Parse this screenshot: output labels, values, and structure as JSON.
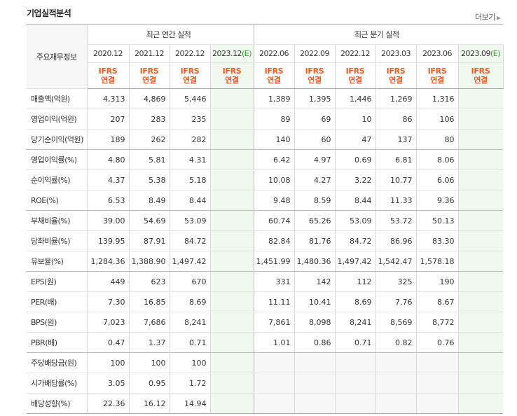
{
  "title": "기업실적분석",
  "more": "더보기",
  "corner": "주요재무정보",
  "groups": {
    "annual": "최근 연간 실적",
    "quarter": "최근 분기 실적"
  },
  "annual_periods": [
    "2020.12",
    "2021.12",
    "2022.12",
    "2023.12"
  ],
  "quarter_periods": [
    "2022.06",
    "2022.09",
    "2022.12",
    "2023.03",
    "2023.06",
    "2023.09"
  ],
  "estimate_mark": "(E)",
  "ifrs": "IFRS",
  "consolidated": "연결",
  "rows": [
    {
      "label": "매출액(억원)",
      "annual": [
        "4,313",
        "4,869",
        "5,446",
        ""
      ],
      "quarter": [
        "1,389",
        "1,395",
        "1,446",
        "1,269",
        "1,316",
        ""
      ]
    },
    {
      "label": "영업이익(억원)",
      "annual": [
        "207",
        "283",
        "235",
        ""
      ],
      "quarter": [
        "89",
        "69",
        "10",
        "86",
        "106",
        ""
      ]
    },
    {
      "label": "당기순이익(억원)",
      "annual": [
        "189",
        "262",
        "282",
        ""
      ],
      "quarter": [
        "140",
        "60",
        "47",
        "137",
        "80",
        ""
      ]
    },
    {
      "label": "영업이익률(%)",
      "annual": [
        "4.80",
        "5.81",
        "4.31",
        ""
      ],
      "quarter": [
        "6.42",
        "4.97",
        "0.69",
        "6.81",
        "8.06",
        ""
      ]
    },
    {
      "label": "순이익률(%)",
      "annual": [
        "4.37",
        "5.38",
        "5.18",
        ""
      ],
      "quarter": [
        "10.08",
        "4.27",
        "3.22",
        "10.77",
        "6.06",
        ""
      ]
    },
    {
      "label": "ROE(%)",
      "annual": [
        "6.53",
        "8.49",
        "8.44",
        ""
      ],
      "quarter": [
        "9.48",
        "8.59",
        "8.44",
        "11.33",
        "9.36",
        ""
      ]
    },
    {
      "label": "부채비율(%)",
      "annual": [
        "39.00",
        "54.69",
        "53.09",
        ""
      ],
      "quarter": [
        "60.74",
        "65.26",
        "53.09",
        "53.72",
        "50.13",
        ""
      ]
    },
    {
      "label": "당좌비율(%)",
      "annual": [
        "139.95",
        "87.91",
        "84.72",
        ""
      ],
      "quarter": [
        "82.84",
        "81.76",
        "84.72",
        "86.96",
        "83.30",
        ""
      ]
    },
    {
      "label": "유보율(%)",
      "annual": [
        "1,284.36",
        "1,388.90",
        "1,497.42",
        ""
      ],
      "quarter": [
        "1,451.99",
        "1,480.36",
        "1,497.42",
        "1,542.47",
        "1,578.18",
        ""
      ]
    },
    {
      "label": "EPS(원)",
      "annual": [
        "449",
        "623",
        "670",
        ""
      ],
      "quarter": [
        "331",
        "142",
        "112",
        "325",
        "190",
        ""
      ]
    },
    {
      "label": "PER(배)",
      "annual": [
        "7.30",
        "16.85",
        "8.69",
        ""
      ],
      "quarter": [
        "11.11",
        "10.41",
        "8.69",
        "7.76",
        "8.67",
        ""
      ]
    },
    {
      "label": "BPS(원)",
      "annual": [
        "7,023",
        "7,686",
        "8,241",
        ""
      ],
      "quarter": [
        "7,861",
        "8,098",
        "8,241",
        "8,569",
        "8,772",
        ""
      ]
    },
    {
      "label": "PBR(배)",
      "annual": [
        "0.47",
        "1.37",
        "0.71",
        ""
      ],
      "quarter": [
        "1.01",
        "0.86",
        "0.71",
        "0.82",
        "0.76",
        ""
      ]
    },
    {
      "label": "주당배당금(원)",
      "annual": [
        "100",
        "100",
        "100",
        ""
      ],
      "quarter": [
        "",
        "",
        "",
        "",
        "",
        ""
      ]
    },
    {
      "label": "시가배당률(%)",
      "annual": [
        "3.05",
        "0.95",
        "1.72",
        ""
      ],
      "quarter": [
        "",
        "",
        "",
        "",
        "",
        ""
      ]
    },
    {
      "label": "배당성향(%)",
      "annual": [
        "22.36",
        "16.12",
        "14.94",
        ""
      ],
      "quarter": [
        "",
        "",
        "",
        "",
        "",
        ""
      ]
    }
  ]
}
